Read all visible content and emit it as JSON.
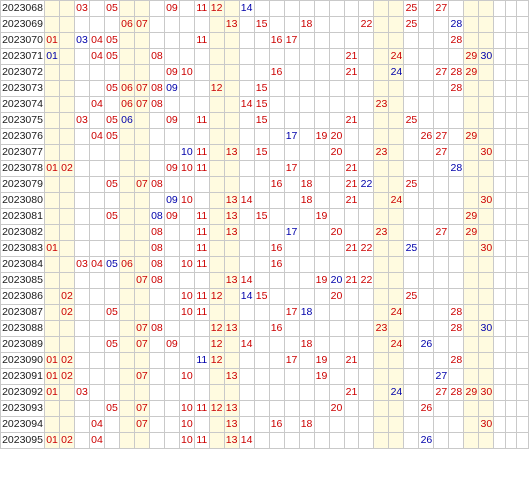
{
  "columns": 33,
  "highlight_groups": [
    [
      1,
      2
    ],
    [
      6,
      7
    ],
    [
      12,
      13
    ],
    [
      23,
      24
    ],
    [
      29,
      30
    ]
  ],
  "colors": {
    "front": "#cc0000",
    "back": "#0000aa",
    "highlight": "#fffbe0",
    "grid": "#c9c9c9"
  },
  "rows": [
    {
      "issue": "2023068",
      "red": [
        3,
        5,
        9,
        11,
        12,
        25,
        27
      ],
      "blue": [
        14
      ]
    },
    {
      "issue": "2023069",
      "red": [
        6,
        7,
        13,
        15,
        18,
        22,
        25
      ],
      "blue": [
        28
      ]
    },
    {
      "issue": "2023070",
      "red": [
        1,
        4,
        5,
        11,
        16,
        17,
        28
      ],
      "blue": [
        3
      ]
    },
    {
      "issue": "2023071",
      "red": [
        4,
        5,
        8,
        21,
        24,
        29
      ],
      "blue": [
        1,
        30
      ]
    },
    {
      "issue": "2023072",
      "red": [
        9,
        10,
        16,
        21,
        27,
        28,
        29
      ],
      "blue": [
        24
      ]
    },
    {
      "issue": "2023073",
      "red": [
        5,
        6,
        7,
        8,
        12,
        15,
        28
      ],
      "blue": [
        9
      ]
    },
    {
      "issue": "2023074",
      "red": [
        4,
        6,
        7,
        8,
        14,
        15,
        23
      ],
      "blue": []
    },
    {
      "issue": "2023075",
      "red": [
        3,
        5,
        9,
        11,
        15,
        21,
        25
      ],
      "blue": [
        6
      ]
    },
    {
      "issue": "2023076",
      "red": [
        4,
        5,
        19,
        20,
        26,
        27,
        29
      ],
      "blue": [
        17
      ]
    },
    {
      "issue": "2023077",
      "red": [
        11,
        13,
        15,
        20,
        23,
        27,
        30
      ],
      "blue": [
        10
      ]
    },
    {
      "issue": "2023078",
      "red": [
        1,
        2,
        9,
        10,
        11,
        17,
        21
      ],
      "blue": [
        28
      ]
    },
    {
      "issue": "2023079",
      "red": [
        5,
        7,
        8,
        16,
        18,
        21,
        25
      ],
      "blue": [
        22
      ]
    },
    {
      "issue": "2023080",
      "red": [
        10,
        13,
        14,
        18,
        21,
        24,
        30
      ],
      "blue": [
        9
      ]
    },
    {
      "issue": "2023081",
      "red": [
        5,
        9,
        11,
        13,
        15,
        19,
        29
      ],
      "blue": [
        8
      ]
    },
    {
      "issue": "2023082",
      "red": [
        8,
        11,
        13,
        20,
        23,
        27,
        29
      ],
      "blue": [
        17
      ]
    },
    {
      "issue": "2023083",
      "red": [
        1,
        8,
        11,
        16,
        21,
        22,
        30
      ],
      "blue": [
        25
      ]
    },
    {
      "issue": "2023084",
      "red": [
        3,
        4,
        6,
        8,
        10,
        11,
        16
      ],
      "blue": [
        5
      ]
    },
    {
      "issue": "2023085",
      "red": [
        7,
        8,
        13,
        14,
        19,
        21,
        22
      ],
      "blue": [
        20
      ]
    },
    {
      "issue": "2023086",
      "red": [
        2,
        10,
        11,
        12,
        15,
        20,
        25
      ],
      "blue": [
        14
      ]
    },
    {
      "issue": "2023087",
      "red": [
        2,
        5,
        10,
        11,
        17,
        24,
        28
      ],
      "blue": [
        18
      ]
    },
    {
      "issue": "2023088",
      "red": [
        7,
        8,
        12,
        13,
        16,
        23,
        28
      ],
      "blue": [
        30
      ]
    },
    {
      "issue": "2023089",
      "red": [
        5,
        7,
        9,
        12,
        14,
        18,
        24
      ],
      "blue": [
        26
      ]
    },
    {
      "issue": "2023090",
      "red": [
        1,
        2,
        12,
        17,
        19,
        21,
        28
      ],
      "blue": [
        11
      ]
    },
    {
      "issue": "2023091",
      "red": [
        1,
        2,
        7,
        10,
        13,
        19
      ],
      "blue": [
        27
      ]
    },
    {
      "issue": "2023092",
      "red": [
        1,
        3,
        21,
        27,
        28,
        29,
        30
      ],
      "blue": [
        24
      ]
    },
    {
      "issue": "2023093",
      "red": [
        5,
        7,
        10,
        11,
        12,
        13,
        20,
        26
      ],
      "blue": []
    },
    {
      "issue": "2023094",
      "red": [
        4,
        7,
        10,
        13,
        16,
        18,
        30
      ],
      "blue": []
    },
    {
      "issue": "2023095",
      "red": [
        1,
        2,
        4,
        10,
        11,
        13,
        14
      ],
      "blue": [
        26
      ]
    }
  ]
}
